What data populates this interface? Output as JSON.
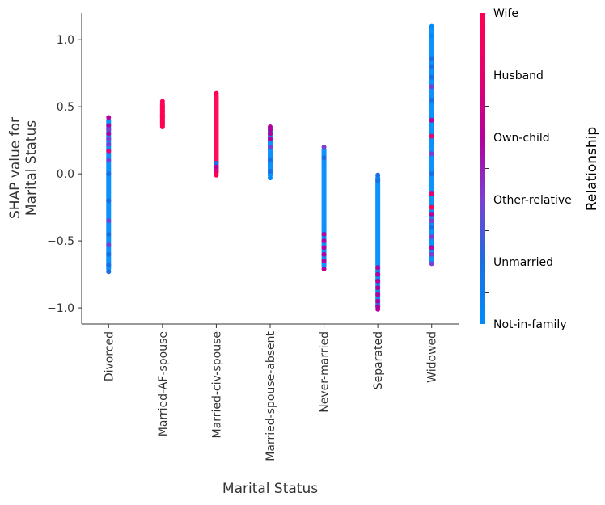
{
  "chart_data": {
    "type": "scatter",
    "subtype": "shap-dependence",
    "xlabel": "Marital Status",
    "ylabel_line1": "SHAP value for",
    "ylabel_line2": "Marital Status",
    "ylim": [
      -1.12,
      1.2
    ],
    "yticks": [
      1.0,
      0.5,
      0.0,
      -0.5,
      -1.0
    ],
    "ytick_labels": [
      "1.0",
      "0.5",
      "0.0",
      "−0.5",
      "−1.0"
    ],
    "categories": [
      "Divorced",
      "Married-AF-spouse",
      "Married-civ-spouse",
      "Married-spouse-absent",
      "Never-married",
      "Separated",
      "Widowed"
    ],
    "groups": [
      {
        "category": "Divorced",
        "ymin": -0.73,
        "ymax": 0.42,
        "points": [
          {
            "y": 0.42,
            "r": "Own-child"
          },
          {
            "y": 0.36,
            "r": "Own-child"
          },
          {
            "y": 0.33,
            "r": "Other-relative"
          },
          {
            "y": 0.3,
            "r": "Own-child"
          },
          {
            "y": 0.26,
            "r": "Other-relative"
          },
          {
            "y": 0.22,
            "r": "Other-relative"
          },
          {
            "y": 0.17,
            "r": "Husband"
          },
          {
            "y": 0.1,
            "r": "Other-relative"
          },
          {
            "y": 0.0,
            "r": "Unmarried"
          },
          {
            "y": -0.2,
            "r": "Unmarried"
          },
          {
            "y": -0.35,
            "r": "Other-relative"
          },
          {
            "y": -0.45,
            "r": "Unmarried"
          },
          {
            "y": -0.53,
            "r": "Other-relative"
          },
          {
            "y": -0.6,
            "r": "Unmarried"
          },
          {
            "y": -0.68,
            "r": "Unmarried"
          },
          {
            "y": -0.73,
            "r": "Unmarried"
          }
        ]
      },
      {
        "category": "Married-AF-spouse",
        "ymin": 0.35,
        "ymax": 0.54,
        "points": [
          {
            "y": 0.54,
            "r": "Wife"
          },
          {
            "y": 0.5,
            "r": "Wife"
          },
          {
            "y": 0.47,
            "r": "Wife"
          },
          {
            "y": 0.44,
            "r": "Wife"
          },
          {
            "y": 0.42,
            "r": "Wife"
          },
          {
            "y": 0.4,
            "r": "Wife"
          },
          {
            "y": 0.38,
            "r": "Wife"
          },
          {
            "y": 0.36,
            "r": "Wife"
          },
          {
            "y": 0.35,
            "r": "Wife"
          }
        ]
      },
      {
        "category": "Married-civ-spouse",
        "ymin": -0.01,
        "ymax": 0.6,
        "points": [
          {
            "y": 0.6,
            "r": "Wife"
          },
          {
            "y": 0.08,
            "r": "Unmarried"
          },
          {
            "y": 0.05,
            "r": "Own-child"
          },
          {
            "y": 0.02,
            "r": "Husband"
          },
          {
            "y": -0.01,
            "r": "Wife"
          }
        ]
      },
      {
        "category": "Married-spouse-absent",
        "ymin": -0.03,
        "ymax": 0.35,
        "points": [
          {
            "y": 0.35,
            "r": "Own-child"
          },
          {
            "y": 0.33,
            "r": "Own-child"
          },
          {
            "y": 0.3,
            "r": "Own-child"
          },
          {
            "y": 0.26,
            "r": "Own-child"
          },
          {
            "y": 0.2,
            "r": "Other-relative"
          },
          {
            "y": 0.1,
            "r": "Unmarried"
          },
          {
            "y": 0.02,
            "r": "Unmarried"
          },
          {
            "y": -0.03,
            "r": "Not-in-family"
          }
        ]
      },
      {
        "category": "Never-married",
        "ymin": -0.71,
        "ymax": 0.2,
        "points": [
          {
            "y": 0.2,
            "r": "Other-relative"
          },
          {
            "y": 0.12,
            "r": "Unmarried"
          },
          {
            "y": -0.45,
            "r": "Own-child"
          },
          {
            "y": -0.5,
            "r": "Own-child"
          },
          {
            "y": -0.55,
            "r": "Own-child"
          },
          {
            "y": -0.6,
            "r": "Own-child"
          },
          {
            "y": -0.65,
            "r": "Own-child"
          },
          {
            "y": -0.71,
            "r": "Own-child"
          }
        ]
      },
      {
        "category": "Separated",
        "ymin": -1.01,
        "ymax": -0.01,
        "points": [
          {
            "y": -0.01,
            "r": "Unmarried"
          },
          {
            "y": -0.05,
            "r": "Unmarried"
          },
          {
            "y": -0.7,
            "r": "Own-child"
          },
          {
            "y": -0.75,
            "r": "Own-child"
          },
          {
            "y": -0.8,
            "r": "Own-child"
          },
          {
            "y": -0.85,
            "r": "Own-child"
          },
          {
            "y": -0.9,
            "r": "Own-child"
          },
          {
            "y": -0.95,
            "r": "Own-child"
          },
          {
            "y": -0.99,
            "r": "Own-child"
          },
          {
            "y": -1.01,
            "r": "Own-child"
          }
        ]
      },
      {
        "category": "Widowed",
        "ymin": -0.67,
        "ymax": 1.1,
        "points": [
          {
            "y": 1.1,
            "r": "Not-in-family"
          },
          {
            "y": 1.03,
            "r": "Not-in-family"
          },
          {
            "y": 0.86,
            "r": "Unmarried"
          },
          {
            "y": 0.8,
            "r": "Unmarried"
          },
          {
            "y": 0.72,
            "r": "Unmarried"
          },
          {
            "y": 0.65,
            "r": "Other-relative"
          },
          {
            "y": 0.55,
            "r": "Unmarried"
          },
          {
            "y": 0.4,
            "r": "Own-child"
          },
          {
            "y": 0.28,
            "r": "Husband"
          },
          {
            "y": 0.15,
            "r": "Other-relative"
          },
          {
            "y": 0.0,
            "r": "Unmarried"
          },
          {
            "y": -0.15,
            "r": "Husband"
          },
          {
            "y": -0.25,
            "r": "Wife"
          },
          {
            "y": -0.3,
            "r": "Own-child"
          },
          {
            "y": -0.35,
            "r": "Other-relative"
          },
          {
            "y": -0.4,
            "r": "Unmarried"
          },
          {
            "y": -0.47,
            "r": "Other-relative"
          },
          {
            "y": -0.55,
            "r": "Own-child"
          },
          {
            "y": -0.6,
            "r": "Other-relative"
          },
          {
            "y": -0.67,
            "r": "Other-relative"
          }
        ]
      }
    ],
    "colorbar": {
      "title": "Relationship",
      "labels_top_to_bottom": [
        "Wife",
        "Husband",
        "Own-child",
        "Other-relative",
        "Unmarried",
        "Not-in-family"
      ],
      "colors": {
        "Wife": "#ff0052",
        "Husband": "#e6006d",
        "Own-child": "#b4009b",
        "Other-relative": "#7b3fd1",
        "Unmarried": "#1b6fe0",
        "Not-in-family": "#008bfb"
      }
    },
    "grid": false,
    "legend": "colorbar-right"
  }
}
